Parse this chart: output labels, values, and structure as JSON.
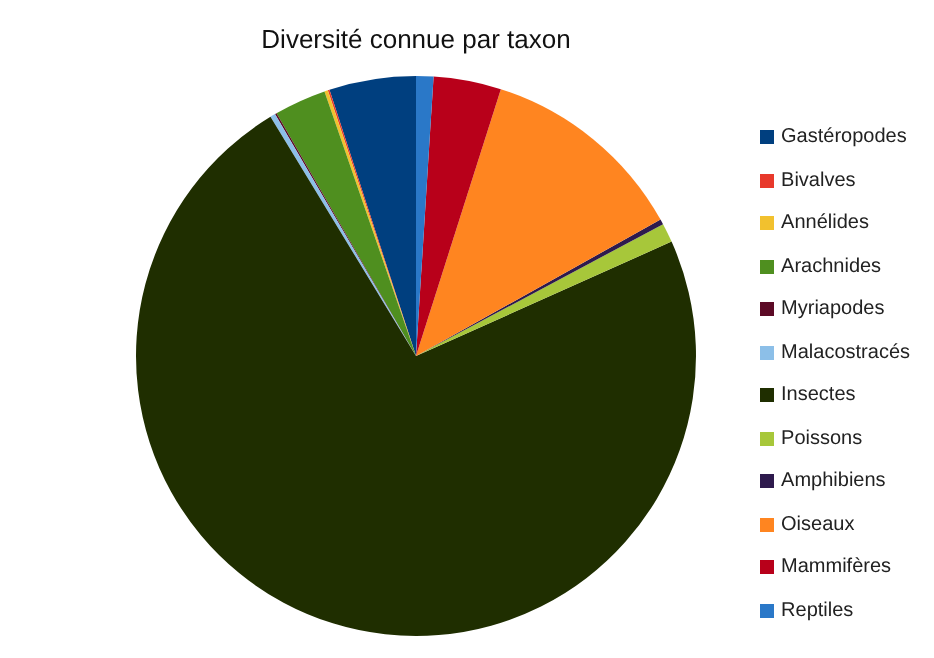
{
  "chart_data": {
    "type": "pie",
    "title": "Diversité connue par taxon",
    "categories": [
      "Gastéropodes",
      "Bivalves",
      "Annélides",
      "Arachnides",
      "Myriapodes",
      "Malacostracés",
      "Insectes",
      "Poissons",
      "Amphibiens",
      "Oiseaux",
      "Mammifères",
      "Reptiles"
    ],
    "values": [
      5,
      0.1,
      0.2,
      3,
      0.1,
      0.3,
      73,
      1.1,
      0.3,
      12,
      3.9,
      1
    ],
    "colors": [
      "#003f7f",
      "#e8392b",
      "#f2c12e",
      "#4f8f1f",
      "#5c0a26",
      "#8cbfe8",
      "#1f2e00",
      "#a7c73a",
      "#2e1a4d",
      "#ff8520",
      "#b8001a",
      "#2a78c8"
    ],
    "legend": "right"
  }
}
